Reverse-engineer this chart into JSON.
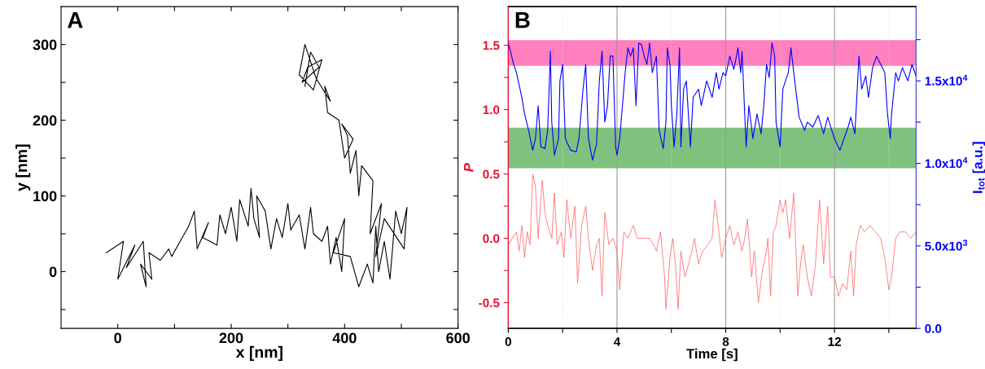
{
  "chart_data": [
    {
      "type": "line",
      "xlabel": "x [nm]",
      "ylabel": "y [nm]",
      "annotations": [
        "A"
      ],
      "xlim": [
        -100,
        600
      ],
      "ylim": [
        -75,
        350
      ],
      "xticks": [
        0,
        {
          "value": 100,
          "label": null
        },
        200,
        {
          "value": 300,
          "label": null
        },
        400,
        {
          "value": 500,
          "label": null
        },
        600
      ],
      "yticks": [
        {
          "value": -50,
          "label": null
        },
        0,
        {
          "value": 50,
          "label": null
        },
        100,
        {
          "value": 150,
          "label": null
        },
        200,
        {
          "value": 250,
          "label": null
        },
        300
      ],
      "series": [
        {
          "color": "#000000",
          "x": [
            -20,
            10,
            0,
            30,
            15,
            45,
            50,
            40,
            60,
            55,
            75,
            90,
            95,
            110,
            125,
            135,
            140,
            160,
            150,
            175,
            180,
            190,
            200,
            210,
            215,
            230,
            235,
            240,
            250,
            245,
            260,
            270,
            280,
            290,
            300,
            305,
            320,
            330,
            340,
            345,
            360,
            370,
            375,
            385,
            395,
            400,
            380,
            410,
            425,
            440,
            450,
            455,
            460,
            470,
            480,
            490,
            500,
            510,
            505,
            470,
            455,
            465,
            445,
            450,
            430,
            425,
            420,
            410,
            405,
            395,
            415,
            400,
            390,
            370,
            365,
            375,
            350,
            330,
            320,
            345,
            360,
            335,
            325,
            355,
            340,
            330
          ],
          "values": [
            25,
            40,
            -10,
            35,
            5,
            40,
            -20,
            10,
            -10,
            25,
            15,
            30,
            20,
            40,
            60,
            80,
            30,
            65,
            45,
            35,
            75,
            50,
            85,
            40,
            95,
            60,
            110,
            70,
            45,
            100,
            80,
            30,
            70,
            45,
            90,
            55,
            75,
            30,
            85,
            50,
            40,
            60,
            10,
            45,
            0,
            70,
            25,
            20,
            -20,
            10,
            -15,
            60,
            0,
            40,
            -10,
            80,
            50,
            85,
            30,
            70,
            20,
            90,
            50,
            120,
            140,
            100,
            160,
            130,
            180,
            195,
            175,
            150,
            200,
            210,
            245,
            225,
            255,
            300,
            260,
            240,
            280,
            270,
            250,
            270,
            290,
            245
          ]
        }
      ]
    },
    {
      "type": "line",
      "xlabel": "Time [s]",
      "ylabel": "P",
      "y2label": "I$_{tot}$ [a.u.]",
      "annotations": [
        "B"
      ],
      "grid": "x",
      "xlim": [
        0,
        15
      ],
      "ylim": [
        -0.7,
        1.8
      ],
      "y2lim": [
        0,
        19500
      ],
      "xticks": [
        0,
        {
          "value": 2,
          "label": null
        },
        4,
        {
          "value": 6,
          "label": null
        },
        8,
        {
          "value": 10,
          "label": null
        },
        12,
        {
          "value": 14,
          "label": null
        }
      ],
      "yticks": [
        -0.5,
        {
          "value": -0.25,
          "label": null
        },
        {
          "value": 0,
          "label": "0.0"
        },
        {
          "value": 0.25,
          "label": null
        },
        0.5,
        {
          "value": 0.75,
          "label": null
        },
        {
          "value": 1,
          "label": "1.0"
        },
        {
          "value": 1.25,
          "label": null
        },
        1.5
      ],
      "y2ticks": [
        {
          "value": 0,
          "label": "0.0"
        },
        {
          "value": 2500,
          "label": null
        },
        {
          "value": 5000,
          "label": "5.0x10$^{3}$"
        },
        {
          "value": 7500,
          "label": null
        },
        {
          "value": 10000,
          "label": "1.0x10$^{4}$"
        },
        {
          "value": 12500,
          "label": null
        },
        {
          "value": 15000,
          "label": "1.5x10$^{4}$"
        },
        {
          "value": 17500,
          "label": null
        }
      ],
      "bands": [
        {
          "axis": "y",
          "from": 1.34,
          "to": 1.54,
          "color": "#ff7fbf"
        },
        {
          "axis": "y",
          "from": 0.544,
          "to": 0.86,
          "color": "#7fc27f"
        }
      ],
      "series": [
        {
          "color": "#ff6b6b",
          "axis": "y",
          "x": [
            0,
            0.3,
            0.4,
            0.5,
            0.6,
            0.7,
            0.8,
            0.9,
            1.0,
            1.1,
            1.2,
            1.25,
            1.35,
            1.45,
            1.6,
            1.7,
            1.8,
            1.95,
            2.05,
            2.15,
            2.3,
            2.45,
            2.55,
            2.7,
            2.85,
            2.95,
            3.1,
            3.25,
            3.35,
            3.45,
            3.55,
            3.7,
            3.85,
            4.0,
            4.1,
            4.25,
            4.4,
            4.6,
            4.75,
            5.0,
            5.2,
            5.35,
            5.45,
            5.6,
            5.75,
            5.8,
            5.95,
            6.05,
            6.15,
            6.25,
            6.35,
            6.5,
            6.7,
            6.85,
            7.0,
            7.15,
            7.35,
            7.5,
            7.6,
            7.75,
            7.85,
            8.0,
            8.15,
            8.3,
            8.45,
            8.6,
            8.7,
            8.8,
            8.95,
            9.05,
            9.2,
            9.35,
            9.5,
            9.55,
            9.65,
            9.75,
            9.85,
            10.0,
            10.1,
            10.2,
            10.35,
            10.5,
            10.65,
            10.75,
            10.85,
            11.0,
            11.15,
            11.3,
            11.45,
            11.6,
            11.75,
            11.85,
            12.0,
            12.15,
            12.3,
            12.45,
            12.6,
            12.7,
            12.8,
            12.95,
            13.1,
            13.3,
            13.5,
            13.7,
            13.85,
            14.0,
            14.1,
            14.25,
            14.4,
            14.6,
            14.8,
            15.0
          ],
          "values": [
            -0.05,
            0.05,
            -0.1,
            0.1,
            -0.15,
            0.05,
            -0.05,
            0.5,
            0.4,
            0.0,
            0.3,
            0.45,
            0.2,
            0.1,
            0.0,
            0.35,
            -0.05,
            0.05,
            -0.15,
            0.3,
            0.0,
            0.25,
            -0.35,
            0.1,
            0.25,
            0.0,
            -0.25,
            -0.05,
            0.0,
            -0.45,
            0.2,
            -0.05,
            0.0,
            -0.1,
            -0.4,
            0.05,
            0.0,
            0.1,
            0.0,
            0.0,
            0.0,
            -0.05,
            -0.1,
            0.05,
            -0.3,
            -0.55,
            -0.15,
            0.0,
            -0.2,
            -0.55,
            -0.1,
            -0.3,
            -0.15,
            0.0,
            -0.2,
            -0.1,
            -0.05,
            0.0,
            0.3,
            0.05,
            -0.15,
            0.0,
            0.1,
            -0.05,
            0.05,
            -0.1,
            0.0,
            0.15,
            -0.3,
            -0.1,
            -0.5,
            -0.25,
            -0.1,
            0.0,
            -0.45,
            0.05,
            0.1,
            0.3,
            0.2,
            0.3,
            0.0,
            0.35,
            -0.45,
            -0.2,
            -0.05,
            -0.3,
            -0.45,
            -0.2,
            0.3,
            -0.2,
            0.25,
            -0.3,
            -0.3,
            -0.45,
            -0.35,
            -0.4,
            -0.1,
            -0.45,
            -0.05,
            0.1,
            0.05,
            0.1,
            0.05,
            0.0,
            -0.15,
            -0.4,
            -0.3,
            0.0,
            0.05,
            0.05,
            0.0,
            0.05
          ]
        },
        {
          "color": "#0000ff",
          "axis": "y2",
          "x": [
            0,
            0.05,
            0.2,
            0.3,
            0.5,
            0.6,
            0.75,
            0.9,
            1.0,
            1.1,
            1.2,
            1.35,
            1.45,
            1.55,
            1.6,
            1.7,
            1.85,
            1.9,
            2.0,
            2.1,
            2.3,
            2.5,
            2.6,
            2.75,
            2.85,
            2.95,
            3.1,
            3.25,
            3.35,
            3.45,
            3.55,
            3.65,
            3.75,
            3.85,
            3.95,
            4.0,
            4.1,
            4.3,
            4.4,
            4.5,
            4.6,
            4.7,
            4.8,
            4.9,
            5.0,
            5.1,
            5.2,
            5.3,
            5.45,
            5.55,
            5.7,
            5.8,
            5.85,
            5.95,
            6.0,
            6.1,
            6.2,
            6.3,
            6.35,
            6.45,
            6.55,
            6.7,
            6.8,
            7.0,
            7.1,
            7.3,
            7.5,
            7.65,
            7.75,
            7.9,
            8.0,
            8.15,
            8.3,
            8.45,
            8.55,
            8.6,
            8.75,
            8.85,
            9.0,
            9.15,
            9.3,
            9.4,
            9.5,
            9.6,
            9.7,
            9.8,
            9.85,
            10.0,
            10.1,
            10.3,
            10.4,
            10.5,
            10.7,
            10.9,
            11.0,
            11.2,
            11.4,
            11.6,
            11.75,
            11.9,
            12.0,
            12.2,
            12.35,
            12.5,
            12.6,
            12.75,
            12.9,
            13.0,
            13.15,
            13.25,
            13.4,
            13.55,
            13.7,
            13.85,
            13.95,
            14.05,
            14.1,
            14.25,
            14.35,
            14.5,
            14.7,
            14.85,
            15.0
          ],
          "values": [
            17300,
            17000,
            16000,
            15500,
            14000,
            13000,
            12000,
            10800,
            11500,
            13500,
            11000,
            10900,
            12000,
            16800,
            12500,
            10500,
            11500,
            15000,
            16000,
            11500,
            10800,
            10700,
            11500,
            14500,
            16000,
            11500,
            10200,
            11200,
            15000,
            16800,
            12500,
            13500,
            16500,
            16500,
            11000,
            10500,
            11500,
            15500,
            17000,
            16500,
            17000,
            13500,
            17300,
            17200,
            16500,
            16000,
            17300,
            15500,
            16500,
            12000,
            10900,
            12500,
            17000,
            16000,
            13500,
            11000,
            13000,
            17000,
            11000,
            14500,
            15000,
            11000,
            14000,
            14500,
            13500,
            15000,
            14000,
            15500,
            14500,
            15500,
            15300,
            16500,
            15700,
            17000,
            15500,
            16800,
            11000,
            13500,
            11500,
            13000,
            11800,
            13500,
            16000,
            15200,
            17300,
            16500,
            12500,
            11000,
            14500,
            15500,
            17000,
            15500,
            12800,
            12000,
            12500,
            12200,
            12900,
            11800,
            12800,
            12000,
            11500,
            10800,
            11500,
            12200,
            12800,
            11800,
            16500,
            14500,
            15300,
            14000,
            15800,
            16500,
            16000,
            15500,
            13000,
            11500,
            13000,
            15500,
            15000,
            15800,
            15000,
            16000,
            15300
          ]
        }
      ]
    }
  ]
}
